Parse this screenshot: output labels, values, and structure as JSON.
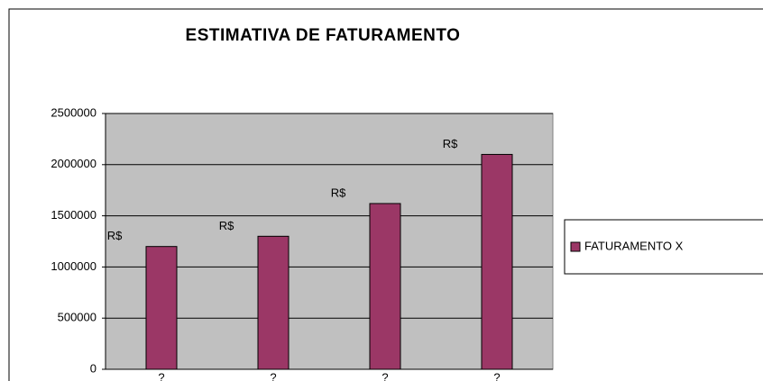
{
  "chart_data": {
    "type": "bar",
    "title": "ESTIMATIVA DE FATURAMENTO",
    "categories": [
      "?",
      "?",
      "?",
      "?"
    ],
    "series": [
      {
        "name": "FATURAMENTO X",
        "color": "#9b3766",
        "values": [
          1200000,
          1300000,
          1620000,
          2100000
        ],
        "value_labels": [
          "R$",
          "R$",
          "R$",
          "R$"
        ]
      }
    ],
    "ylim": [
      0,
      2500000
    ],
    "yticks": [
      0,
      500000,
      1000000,
      1500000,
      2000000,
      2500000
    ],
    "grid": true,
    "legend": "right"
  }
}
